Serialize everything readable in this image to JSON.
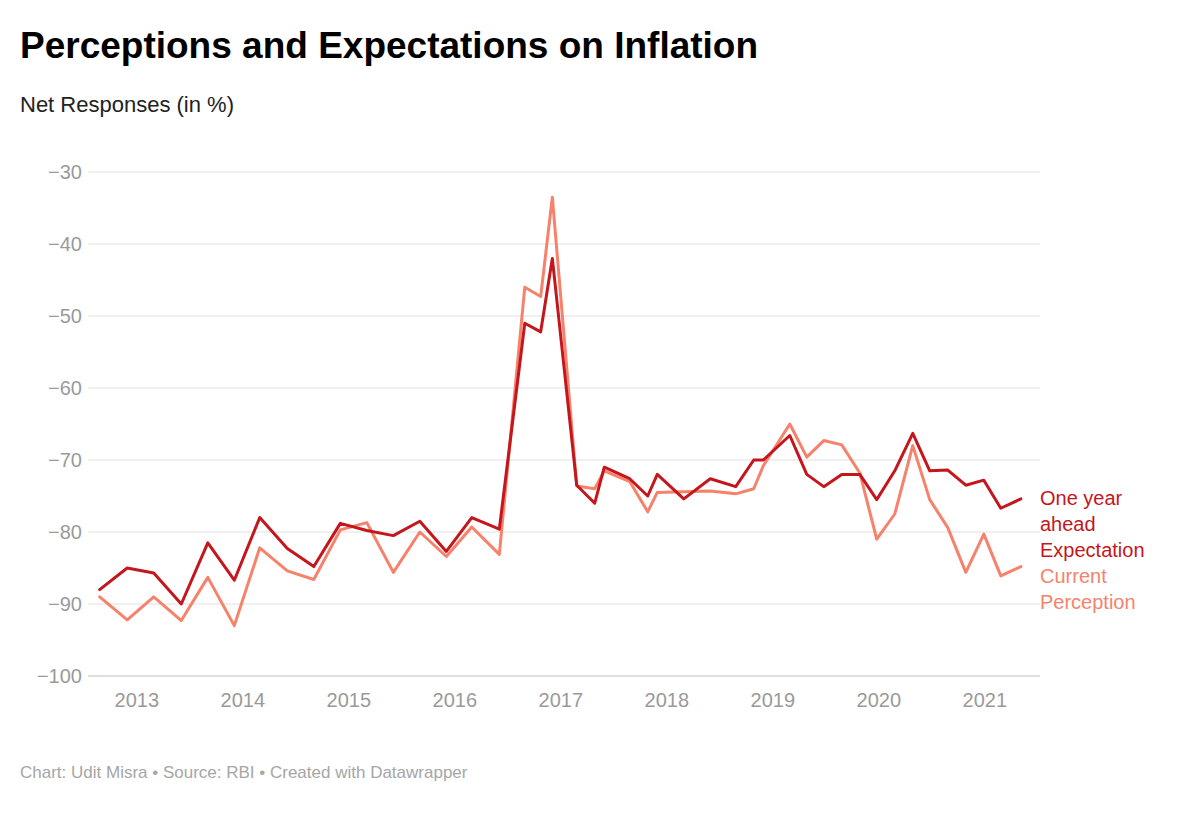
{
  "chart_data": {
    "type": "line",
    "title": "Perceptions and Expectations on Inflation",
    "subtitle": "Net Responses (in %)",
    "caption": "Chart: Udit Misra • Source: RBI • Created with Datawrapper",
    "x": [
      2012.65,
      2012.91,
      2013.16,
      2013.42,
      2013.67,
      2013.92,
      2014.16,
      2014.42,
      2014.67,
      2014.92,
      2015.17,
      2015.42,
      2015.67,
      2015.92,
      2016.16,
      2016.42,
      2016.66,
      2016.81,
      2016.92,
      2017.15,
      2017.32,
      2017.41,
      2017.65,
      2017.82,
      2017.91,
      2018.16,
      2018.41,
      2018.65,
      2018.82,
      2018.91,
      2019.16,
      2019.32,
      2019.48,
      2019.65,
      2019.82,
      2019.98,
      2020.15,
      2020.32,
      2020.48,
      2020.65,
      2020.82,
      2020.99,
      2021.15,
      2021.34
    ],
    "series": [
      {
        "name": "One year ahead Expectation",
        "color": "#c4161c",
        "values": [
          -88,
          -85,
          -85.7,
          -90,
          -81.5,
          -86.7,
          -78,
          -82.3,
          -84.8,
          -78.8,
          -79.8,
          -80.5,
          -78.5,
          -82.7,
          -78,
          -79.6,
          -51,
          -52.2,
          -42,
          -73.5,
          -76,
          -71,
          -72.6,
          -75,
          -72,
          -75.4,
          -72.6,
          -73.7,
          -70,
          -70,
          -66.6,
          -72,
          -73.7,
          -72,
          -72,
          -75.5,
          -71.5,
          -66.3,
          -71.5,
          -71.4,
          -73.5,
          -72.8,
          -76.7,
          -75.4
        ]
      },
      {
        "name": "Current Perception",
        "color": "#f7826b",
        "values": [
          -89,
          -92.2,
          -89,
          -92.3,
          -86.3,
          -93,
          -82.2,
          -85.4,
          -86.6,
          -79.7,
          -78.7,
          -85.6,
          -80,
          -83.4,
          -79.3,
          -83.1,
          -46,
          -47.3,
          -33.5,
          -73.6,
          -74,
          -71.5,
          -73,
          -77.2,
          -74.5,
          -74.4,
          -74.3,
          -74.7,
          -74,
          -70.8,
          -65,
          -69.6,
          -67.3,
          -67.9,
          -71.8,
          -81,
          -77.5,
          -68,
          -75.5,
          -79.4,
          -85.6,
          -80.3,
          -86.1,
          -84.8
        ]
      }
    ],
    "xlim": [
      2012.54,
      2021.52
    ],
    "xticks": [
      2013,
      2014,
      2015,
      2016,
      2017,
      2018,
      2019,
      2020,
      2021
    ],
    "ylim": [
      -100,
      -30
    ],
    "yticks": [
      -100,
      -90,
      -80,
      -70,
      -60,
      -50,
      -40,
      -30
    ],
    "grid": true
  }
}
